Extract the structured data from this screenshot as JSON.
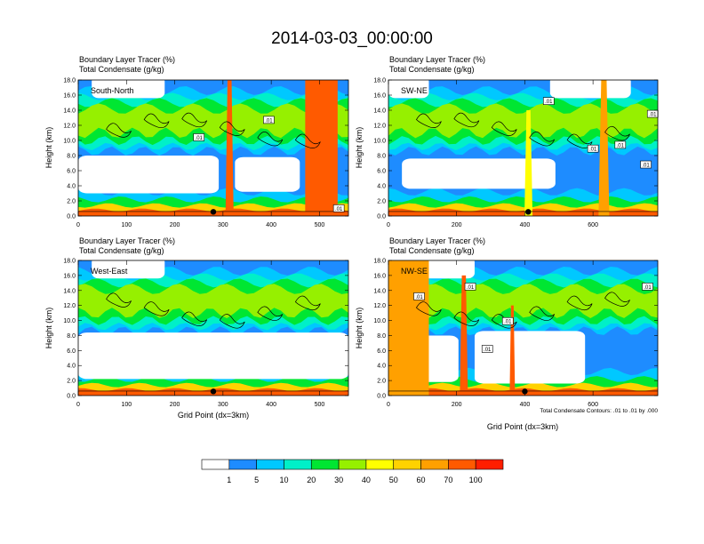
{
  "title": "2014-03-03_00:00:00",
  "colors": {
    "levels": [
      "#ffffff",
      "#1e8cff",
      "#00c8ff",
      "#00f0c8",
      "#00e632",
      "#96f000",
      "#ffff00",
      "#ffd200",
      "#ffa000",
      "#ff5a00",
      "#ff1e00"
    ],
    "contour": "#000000",
    "frame": "#000000"
  },
  "chart_data": [
    {
      "type": "heatmap",
      "subtitle_line1": "Boundary Layer Tracer    (%)",
      "subtitle_line2": "Total Condensate    (g/kg)",
      "cross_section": "South-North",
      "ylabel": "Height (km)",
      "xlabel": "",
      "xlim": [
        0,
        560
      ],
      "ylim": [
        0,
        18
      ],
      "x_ticks": [
        "0",
        "100",
        "200",
        "300",
        "400",
        "500"
      ],
      "y_ticks": [
        "0.0",
        "2.0",
        "4.0",
        "6.0",
        "8.0",
        "10.0",
        "12.0",
        "14.0",
        "16.0",
        "18.0"
      ],
      "contour_labels": [
        ".01",
        ".01",
        ".01"
      ],
      "contour_label_positions": [
        [
          395,
          12.6
        ],
        [
          250,
          10.3
        ],
        [
          540,
          0.9
        ]
      ],
      "dot_x": 280
    },
    {
      "type": "heatmap",
      "subtitle_line1": "Boundary Layer Tracer    (%)",
      "subtitle_line2": "Total Condensate    (g/kg)",
      "cross_section": "SW-NE",
      "ylabel": "Height (km)",
      "xlabel": "",
      "xlim": [
        0,
        790
      ],
      "ylim": [
        0,
        18
      ],
      "x_ticks": [
        "0",
        "200",
        "400",
        "600"
      ],
      "y_ticks": [
        "0.0",
        "2.0",
        "4.0",
        "6.0",
        "8.0",
        "10.0",
        "12.0",
        "14.0",
        "16.0",
        "18.0"
      ],
      "contour_labels": [
        ".01",
        ".01",
        ".01",
        ".01",
        ".01"
      ],
      "contour_label_positions": [
        [
          470,
          15.1
        ],
        [
          775,
          13.4
        ],
        [
          600,
          8.8
        ],
        [
          680,
          9.3
        ],
        [
          755,
          6.7
        ]
      ],
      "dot_x": 410
    },
    {
      "type": "heatmap",
      "subtitle_line1": "Boundary Layer Tracer    (%)",
      "subtitle_line2": "Total Condensate    (g/kg)",
      "cross_section": "West-East",
      "ylabel": "Height (km)",
      "xlabel": "Grid Point (dx=3km)",
      "xlim": [
        0,
        560
      ],
      "ylim": [
        0,
        18
      ],
      "x_ticks": [
        "0",
        "100",
        "200",
        "300",
        "400",
        "500"
      ],
      "y_ticks": [
        "0.0",
        "2.0",
        "4.0",
        "6.0",
        "8.0",
        "10.0",
        "12.0",
        "14.0",
        "16.0",
        "18.0"
      ],
      "contour_labels": [],
      "contour_label_positions": [],
      "dot_x": 280
    },
    {
      "type": "heatmap",
      "subtitle_line1": "Boundary Layer Tracer    (%)",
      "subtitle_line2": "Total Condensate    (g/kg)",
      "cross_section": "NW-SE",
      "ylabel": "Height (km)",
      "xlabel": "Grid Point (dx=3km)",
      "xlim": [
        0,
        790
      ],
      "ylim": [
        0,
        18
      ],
      "x_ticks": [
        "0",
        "200",
        "400",
        "600"
      ],
      "y_ticks": [
        "0.0",
        "2.0",
        "4.0",
        "6.0",
        "8.0",
        "10.0",
        "12.0",
        "14.0",
        "16.0",
        "18.0"
      ],
      "contour_labels": [
        ".01",
        ".01",
        ".01",
        ".01",
        ".01"
      ],
      "contour_label_positions": [
        [
          90,
          13.1
        ],
        [
          240,
          14.4
        ],
        [
          760,
          14.4
        ],
        [
          350,
          9.8
        ],
        [
          290,
          6.1
        ]
      ],
      "dot_x": 400
    }
  ],
  "footnote": "Total Condensate Contours: .01 to .01 by .000",
  "colorbar": {
    "labels": [
      "1",
      "5",
      "10",
      "20",
      "30",
      "40",
      "50",
      "60",
      "70",
      "100"
    ]
  }
}
